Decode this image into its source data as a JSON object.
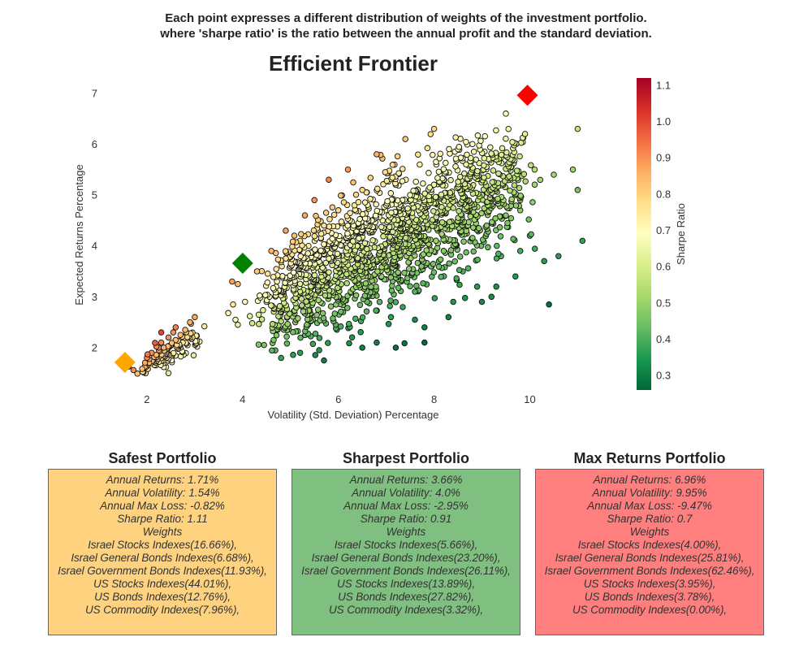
{
  "header": {
    "line1": "Each point expresses a different distribution of weights of the investment portfolio.",
    "line2": "where 'sharpe ratio' is the ratio between the annual profit and the standard deviation."
  },
  "chart_data": {
    "type": "scatter",
    "title": "Efficient Frontier",
    "xlabel": "Volatility (Std. Deviation) Percentage",
    "ylabel": "Expected Returns Percentage",
    "xlim": [
      1.0,
      11.4
    ],
    "ylim": [
      1.2,
      7.3
    ],
    "xticks": [
      2,
      4,
      6,
      8,
      10
    ],
    "yticks": [
      2,
      3,
      4,
      5,
      6,
      7
    ],
    "grid": false,
    "colorbar": {
      "label": "Sharpe Ratio",
      "colormap": "RdYlGn_r",
      "range": [
        0.26,
        1.12
      ],
      "ticks": [
        0.3,
        0.4,
        0.5,
        0.6,
        0.7,
        0.8,
        0.9,
        1.0,
        1.1
      ]
    },
    "highlights": [
      {
        "name": "Safest Portfolio",
        "x": 1.54,
        "y": 1.71,
        "color": "#FFA500",
        "marker": "diamond"
      },
      {
        "name": "Sharpest Portfolio",
        "x": 4.0,
        "y": 3.66,
        "color": "#008000",
        "marker": "diamond"
      },
      {
        "name": "Max Returns Portfolio",
        "x": 9.95,
        "y": 6.96,
        "color": "#FF0000",
        "marker": "diamond"
      }
    ],
    "points": [
      [
        1.62,
        1.63
      ],
      [
        1.72,
        1.56
      ],
      [
        1.8,
        1.49
      ],
      [
        1.95,
        1.62
      ],
      [
        2.05,
        1.78
      ],
      [
        2.1,
        1.9
      ],
      [
        2.15,
        1.82
      ],
      [
        2.2,
        2.02
      ],
      [
        2.25,
        1.95
      ],
      [
        2.3,
        2.1
      ],
      [
        2.35,
        2.0
      ],
      [
        2.4,
        1.88
      ],
      [
        2.45,
        2.2
      ],
      [
        2.5,
        2.05
      ],
      [
        2.55,
        2.3
      ],
      [
        2.6,
        2.15
      ],
      [
        2.65,
        1.98
      ],
      [
        2.7,
        2.25
      ],
      [
        2.75,
        2.1
      ],
      [
        2.8,
        2.35
      ],
      [
        2.85,
        2.05
      ],
      [
        2.9,
        2.5
      ],
      [
        2.95,
        2.2
      ],
      [
        3.0,
        2.6
      ],
      [
        3.05,
        2.02
      ],
      [
        3.1,
        2.12
      ],
      [
        2.4,
        1.62
      ],
      [
        2.45,
        1.5
      ],
      [
        2.2,
        1.74
      ],
      [
        2.3,
        2.3
      ],
      [
        2.6,
        2.4
      ],
      [
        2.7,
        2.0
      ],
      [
        3.2,
        2.42
      ],
      [
        3.7,
        2.68
      ],
      [
        3.8,
        2.85
      ],
      [
        3.85,
        2.55
      ],
      [
        3.9,
        2.45
      ],
      [
        4.05,
        2.9
      ],
      [
        4.15,
        2.62
      ],
      [
        4.2,
        2.48
      ],
      [
        3.78,
        3.3
      ],
      [
        3.9,
        3.25
      ],
      [
        4.3,
        3.5
      ],
      [
        4.5,
        2.9
      ],
      [
        4.6,
        3.9
      ],
      [
        4.7,
        3.2
      ],
      [
        4.8,
        2.7
      ],
      [
        4.9,
        4.3
      ],
      [
        5.0,
        3.6
      ],
      [
        5.1,
        2.5
      ],
      [
        5.2,
        4.1
      ],
      [
        5.3,
        4.6
      ],
      [
        5.4,
        3.0
      ],
      [
        5.5,
        4.9
      ],
      [
        5.6,
        3.8
      ],
      [
        5.7,
        4.4
      ],
      [
        5.8,
        5.3
      ],
      [
        5.9,
        3.3
      ],
      [
        6.0,
        4.7
      ],
      [
        6.1,
        2.7
      ],
      [
        6.2,
        5.5
      ],
      [
        6.3,
        4.0
      ],
      [
        6.4,
        3.6
      ],
      [
        6.5,
        5.1
      ],
      [
        6.6,
        2.9
      ],
      [
        6.7,
        4.5
      ],
      [
        6.8,
        5.8
      ],
      [
        6.9,
        3.4
      ],
      [
        7.0,
        4.8
      ],
      [
        7.1,
        2.6
      ],
      [
        7.2,
        5.2
      ],
      [
        7.3,
        3.9
      ],
      [
        7.4,
        6.1
      ],
      [
        7.5,
        4.3
      ],
      [
        7.6,
        3.1
      ],
      [
        7.7,
        5.6
      ],
      [
        7.8,
        2.4
      ],
      [
        7.9,
        4.9
      ],
      [
        8.0,
        6.3
      ],
      [
        8.1,
        3.7
      ],
      [
        8.2,
        5.3
      ],
      [
        8.3,
        4.1
      ],
      [
        8.4,
        2.9
      ],
      [
        8.5,
        5.9
      ],
      [
        8.6,
        3.5
      ],
      [
        8.7,
        4.7
      ],
      [
        8.8,
        6.0
      ],
      [
        8.9,
        3.2
      ],
      [
        9.0,
        5.0
      ],
      [
        9.1,
        4.4
      ],
      [
        9.2,
        3.0
      ],
      [
        9.3,
        5.7
      ],
      [
        9.4,
        3.8
      ],
      [
        9.5,
        4.6
      ],
      [
        9.6,
        5.3
      ],
      [
        9.7,
        3.4
      ],
      [
        9.8,
        4.9
      ],
      [
        9.9,
        6.2
      ],
      [
        10.0,
        4.2
      ],
      [
        10.1,
        5.5
      ],
      [
        10.3,
        3.7
      ],
      [
        10.5,
        5.4
      ],
      [
        10.6,
        3.8
      ],
      [
        10.9,
        5.5
      ],
      [
        11.0,
        6.3
      ],
      [
        11.1,
        4.1
      ],
      [
        11.0,
        5.1
      ],
      [
        9.8,
        3.9
      ],
      [
        9.3,
        3.2
      ],
      [
        9.0,
        2.9
      ],
      [
        8.3,
        2.6
      ],
      [
        7.8,
        2.1
      ],
      [
        7.2,
        2.0
      ],
      [
        6.5,
        2.0
      ],
      [
        5.7,
        1.75
      ],
      [
        5.6,
        1.95
      ],
      [
        5.2,
        1.9
      ],
      [
        6.8,
        2.1
      ],
      [
        7.6,
        2.55
      ],
      [
        9.5,
        6.6
      ],
      [
        9.8,
        4.7
      ],
      [
        10.4,
        2.85
      ]
    ]
  },
  "cards": [
    {
      "title": "Safest Portfolio",
      "bg": "#FFD27F",
      "returns": "Annual Returns: 1.71%",
      "volatility": "Annual Volatility: 1.54%",
      "max_loss": "Annual Max Loss: -0.82%",
      "sharpe": "Sharpe Ratio: 1.11",
      "weights_label": "Weights",
      "weights": [
        "Israel Stocks Indexes(16.66%),",
        "Israel General Bonds Indexes(6.68%),",
        "Israel Government Bonds Indexes(11.93%),",
        "US Stocks Indexes(44.01%),",
        "US Bonds Indexes(12.76%),",
        "US Commodity Indexes(7.96%),"
      ]
    },
    {
      "title": "Sharpest Portfolio",
      "bg": "#7FBF7F",
      "returns": "Annual Returns: 3.66%",
      "volatility": "Annual Volatility: 4.0%",
      "max_loss": "Annual Max Loss: -2.95%",
      "sharpe": "Sharpe Ratio: 0.91",
      "weights_label": "Weights",
      "weights": [
        "Israel Stocks Indexes(5.66%),",
        "Israel General Bonds Indexes(23.20%),",
        "Israel Government Bonds Indexes(26.11%),",
        "US Stocks Indexes(13.89%),",
        "US Bonds Indexes(27.82%),",
        "US Commodity Indexes(3.32%),"
      ]
    },
    {
      "title": "Max Returns Portfolio",
      "bg": "#FF7F7F",
      "returns": "Annual Returns: 6.96%",
      "volatility": "Annual Volatility: 9.95%",
      "max_loss": "Annual Max Loss: -9.47%",
      "sharpe": "Sharpe Ratio: 0.7",
      "weights_label": "Weights",
      "weights": [
        "Israel Stocks Indexes(4.00%),",
        "Israel General Bonds Indexes(25.81%),",
        "Israel Government Bonds Indexes(62.46%),",
        "US Stocks Indexes(3.95%),",
        "US Bonds Indexes(3.78%),",
        "US Commodity Indexes(0.00%),"
      ]
    }
  ]
}
